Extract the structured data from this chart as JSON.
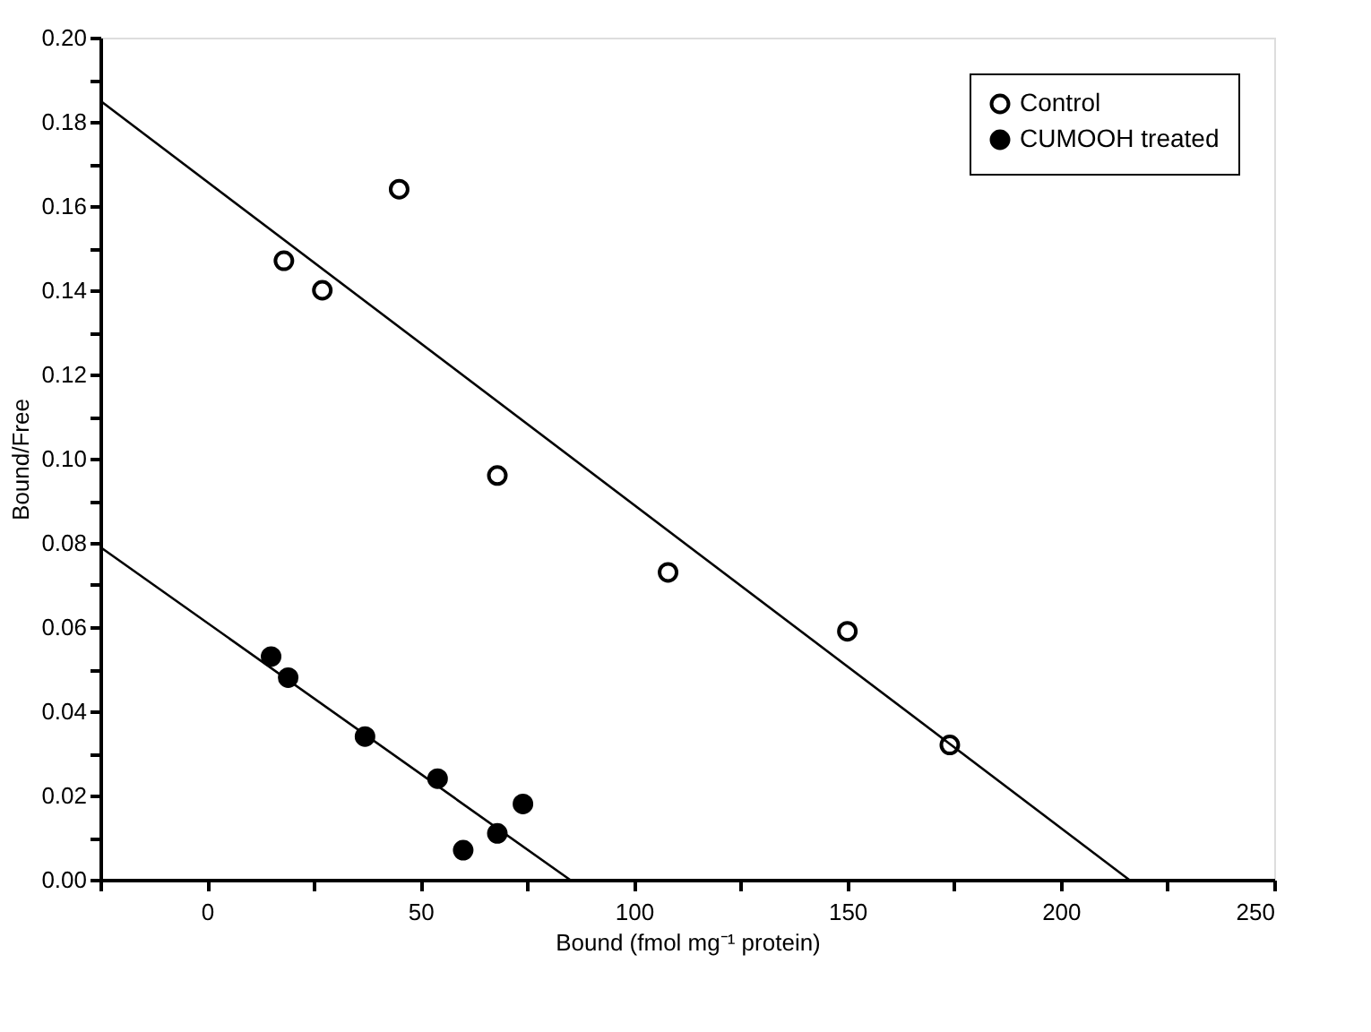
{
  "chart_data": {
    "type": "scatter",
    "xlabel": "Bound (fmol mg⁻¹ protein)",
    "ylabel": "Bound/Free",
    "xlim": [
      -25,
      250
    ],
    "ylim": [
      0,
      0.2
    ],
    "xticks": [
      {
        "value": -25,
        "label": null
      },
      0,
      {
        "value": 25,
        "label": null
      },
      50,
      {
        "value": 75,
        "label": null
      },
      100,
      {
        "value": 125,
        "label": null
      },
      150,
      {
        "value": 175,
        "label": null
      },
      200,
      {
        "value": 225,
        "label": null
      },
      250
    ],
    "yticks": [
      {
        "value": 0,
        "label": "0.00"
      },
      {
        "value": 0.01,
        "label": null
      },
      {
        "value": 0.02,
        "label": "0.02"
      },
      {
        "value": 0.03,
        "label": null
      },
      {
        "value": 0.04,
        "label": "0.04"
      },
      {
        "value": 0.05,
        "label": null
      },
      {
        "value": 0.06,
        "label": "0.06"
      },
      {
        "value": 0.07,
        "label": null
      },
      {
        "value": 0.08,
        "label": "0.08"
      },
      {
        "value": 0.09,
        "label": null
      },
      {
        "value": 0.1,
        "label": "0.10"
      },
      {
        "value": 0.11,
        "label": null
      },
      {
        "value": 0.12,
        "label": "0.12"
      },
      {
        "value": 0.13,
        "label": null
      },
      {
        "value": 0.14,
        "label": "0.14"
      },
      {
        "value": 0.15,
        "label": null
      },
      {
        "value": 0.16,
        "label": "0.16"
      },
      {
        "value": 0.17,
        "label": null
      },
      {
        "value": 0.18,
        "label": "0.18"
      },
      {
        "value": 0.19,
        "label": null
      },
      {
        "value": 0.2,
        "label": "0.20"
      }
    ],
    "grid": false,
    "legend": "top right",
    "marker": "circle",
    "series": [
      {
        "name": "Control",
        "color": "#000000",
        "x": [
          18,
          27,
          45,
          68,
          108,
          150,
          174
        ],
        "values": [
          0.147,
          0.14,
          0.164,
          0.096,
          0.073,
          0.059,
          0.032
        ]
      },
      {
        "name": "CUMOOH treated",
        "color": "#000000",
        "x": [
          15,
          19,
          37,
          54,
          60,
          68,
          74
        ],
        "values": [
          0.053,
          0.048,
          0.034,
          0.024,
          0.007,
          0.011,
          0.018
        ]
      },
      {
        "type": "line",
        "marker": "none",
        "color": "#000000",
        "x": [
          -25,
          216
        ],
        "values": [
          0.185,
          0
        ]
      },
      {
        "type": "line",
        "marker": "none",
        "color": "#000000",
        "x": [
          -25,
          85
        ],
        "values": [
          0.079,
          0
        ]
      }
    ]
  }
}
